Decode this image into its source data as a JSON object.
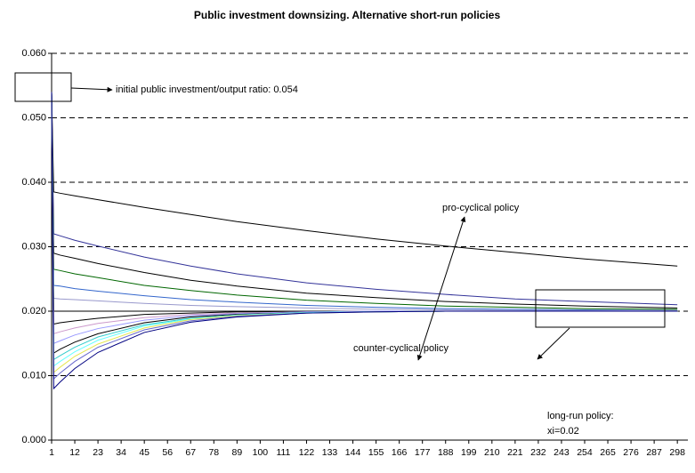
{
  "chart_data": {
    "type": "line",
    "title": "Public investment downsizing. Alternative short-run policies",
    "annotations": [
      "initial public investment/output ratio: 0.054",
      "pro-cyclical policy",
      "counter-cyclical policy",
      "long-run policy:",
      "xi=0.02"
    ],
    "x": [
      1,
      2,
      5,
      12,
      23,
      45,
      67,
      89,
      122,
      155,
      188,
      221,
      254,
      298
    ],
    "xlim": [
      1,
      303
    ],
    "xticks": [
      1,
      12,
      23,
      34,
      45,
      56,
      67,
      78,
      89,
      100,
      111,
      122,
      133,
      144,
      155,
      166,
      177,
      188,
      199,
      210,
      221,
      232,
      243,
      254,
      265,
      276,
      287,
      298
    ],
    "ylim": [
      0,
      0.06
    ],
    "yticks": [
      {
        "value": 0,
        "label": "0.000"
      },
      {
        "value": 0.01,
        "label": "0.010"
      },
      {
        "value": 0.02,
        "label": "0.020"
      },
      {
        "value": 0.03,
        "label": "0.030"
      },
      {
        "value": 0.04,
        "label": "0.040"
      },
      {
        "value": 0.05,
        "label": "0.050"
      },
      {
        "value": 0.06,
        "label": "0.060"
      }
    ],
    "grid": true,
    "series": [
      {
        "color": "#000000",
        "values": [
          0.054,
          0.0385,
          0.0383,
          0.0379,
          0.0373,
          0.0361,
          0.035,
          0.0339,
          0.0325,
          0.0312,
          0.0301,
          0.0291,
          0.0281,
          0.027
        ]
      },
      {
        "color": "#333399",
        "values": [
          0.054,
          0.032,
          0.0317,
          0.031,
          0.0301,
          0.0284,
          0.027,
          0.0258,
          0.0244,
          0.0234,
          0.0226,
          0.0219,
          0.0215,
          0.021
        ]
      },
      {
        "color": "#000000",
        "values": [
          0.054,
          0.029,
          0.0287,
          0.0282,
          0.0274,
          0.026,
          0.0248,
          0.0239,
          0.0228,
          0.0221,
          0.0215,
          0.0211,
          0.0208,
          0.0205
        ]
      },
      {
        "color": "#006600",
        "values": [
          0.054,
          0.0265,
          0.0263,
          0.0258,
          0.0252,
          0.024,
          0.0232,
          0.0225,
          0.0217,
          0.0212,
          0.0208,
          0.0206,
          0.0204,
          0.0203
        ]
      },
      {
        "color": "#3366cc",
        "values": [
          0.054,
          0.024,
          0.0239,
          0.0235,
          0.0231,
          0.0224,
          0.0218,
          0.0214,
          0.0209,
          0.0206,
          0.0204,
          0.0203,
          0.0202,
          0.0201
        ]
      },
      {
        "color": "#9999cc",
        "values": [
          0.054,
          0.022,
          0.0219,
          0.0218,
          0.0216,
          0.0212,
          0.0209,
          0.0207,
          0.0205,
          0.0203,
          0.0202,
          0.0201,
          0.0201,
          0.0201
        ]
      },
      {
        "color": "#000000",
        "values": [
          0.054,
          0.02,
          0.02,
          0.02,
          0.02,
          0.02,
          0.02,
          0.02,
          0.02,
          0.02,
          0.02,
          0.02,
          0.02,
          0.02
        ]
      },
      {
        "color": "#000000",
        "values": [
          0.054,
          0.018,
          0.0182,
          0.0185,
          0.0189,
          0.0195,
          0.0197,
          0.0199,
          0.0199,
          0.02,
          0.02,
          0.02,
          0.02,
          0.02
        ]
      },
      {
        "color": "#cc99cc",
        "values": [
          0.054,
          0.0165,
          0.0168,
          0.0174,
          0.0181,
          0.019,
          0.0195,
          0.0197,
          0.0199,
          0.02,
          0.02,
          0.02,
          0.02,
          0.02
        ]
      },
      {
        "color": "#9999ff",
        "values": [
          0.054,
          0.015,
          0.0154,
          0.0163,
          0.0173,
          0.0186,
          0.0193,
          0.0196,
          0.0199,
          0.02,
          0.02,
          0.02,
          0.02,
          0.02
        ]
      },
      {
        "color": "#000000",
        "values": [
          0.054,
          0.0135,
          0.0141,
          0.0152,
          0.0165,
          0.0182,
          0.0191,
          0.0195,
          0.0198,
          0.0199,
          0.02,
          0.02,
          0.02,
          0.02
        ]
      },
      {
        "color": "#33cccc",
        "values": [
          0.054,
          0.0125,
          0.0131,
          0.0144,
          0.016,
          0.0179,
          0.0189,
          0.0194,
          0.0198,
          0.0199,
          0.02,
          0.02,
          0.02,
          0.02
        ]
      },
      {
        "color": "#66ffff",
        "values": [
          0.054,
          0.0115,
          0.0122,
          0.0137,
          0.0155,
          0.0177,
          0.0188,
          0.0194,
          0.0198,
          0.0199,
          0.02,
          0.02,
          0.02,
          0.02
        ]
      },
      {
        "color": "#e6e64d",
        "values": [
          0.054,
          0.0105,
          0.0113,
          0.013,
          0.0149,
          0.0174,
          0.0187,
          0.0193,
          0.0197,
          0.0199,
          0.02,
          0.02,
          0.02,
          0.02
        ]
      },
      {
        "color": "#6666cc",
        "values": [
          0.054,
          0.0095,
          0.0104,
          0.0122,
          0.0144,
          0.0171,
          0.0185,
          0.0192,
          0.0197,
          0.0199,
          0.02,
          0.02,
          0.02,
          0.02
        ]
      },
      {
        "color": "#000080",
        "values": [
          0.054,
          0.008,
          0.009,
          0.0111,
          0.0136,
          0.0167,
          0.0183,
          0.0191,
          0.0197,
          0.0199,
          0.02,
          0.02,
          0.02,
          0.02
        ]
      }
    ]
  }
}
